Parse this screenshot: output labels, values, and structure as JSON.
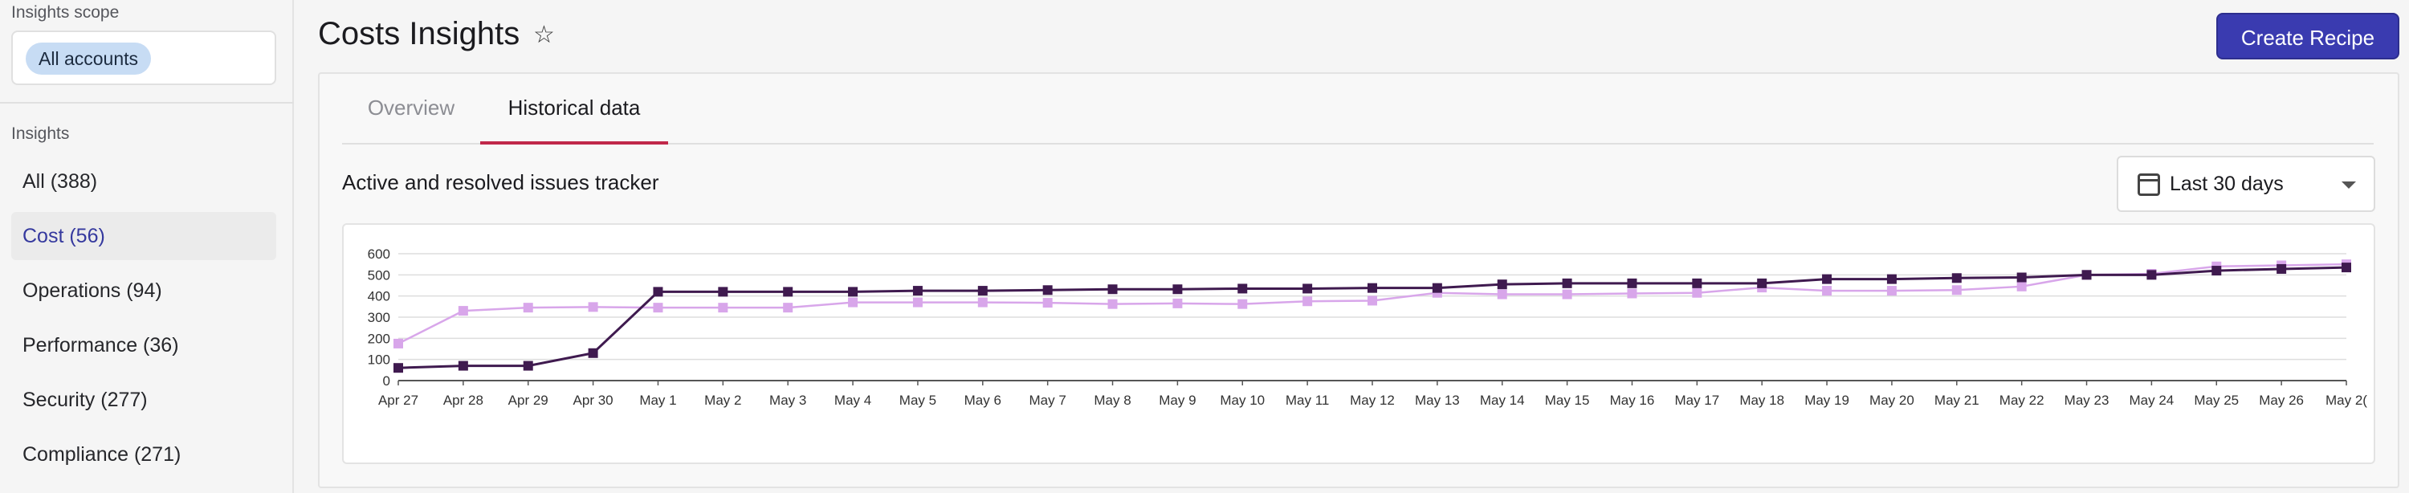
{
  "sidebar": {
    "scope_label": "Insights scope",
    "scope_chip": "All accounts",
    "insights_label": "Insights",
    "items": [
      {
        "label": "All (388)"
      },
      {
        "label": "Cost (56)"
      },
      {
        "label": "Operations (94)"
      },
      {
        "label": "Performance (36)"
      },
      {
        "label": "Security (277)"
      },
      {
        "label": "Compliance (271)"
      }
    ]
  },
  "header": {
    "title": "Costs Insights",
    "star_icon": "star-outline-icon",
    "create_button": "Create Recipe"
  },
  "tabs": [
    {
      "label": "Overview",
      "active": false
    },
    {
      "label": "Historical data",
      "active": true
    }
  ],
  "tracker": {
    "title": "Active and resolved issues tracker",
    "range": "Last 30 days",
    "calendar_icon": "calendar-icon",
    "dropdown_icon": "caret-down-icon"
  },
  "colors": {
    "accent": "#3a3bb0",
    "series_dark": "#3f1a4f",
    "series_light": "#d8a6ea",
    "tab_underline": "#c0284a"
  },
  "chart_data": {
    "type": "line",
    "ylim": [
      0,
      600
    ],
    "yticks": [
      0,
      100,
      200,
      300,
      400,
      500,
      600
    ],
    "grid": true,
    "categories": [
      "Apr 27",
      "Apr 28",
      "Apr 29",
      "Apr 30",
      "May 1",
      "May 2",
      "May 3",
      "May 4",
      "May 5",
      "May 6",
      "May 7",
      "May 8",
      "May 9",
      "May 10",
      "May 11",
      "May 12",
      "May 13",
      "May 14",
      "May 15",
      "May 16",
      "May 17",
      "May 18",
      "May 19",
      "May 20",
      "May 21",
      "May 22",
      "May 23",
      "May 24",
      "May 25",
      "May 26",
      "May 2("
    ],
    "series": [
      {
        "color": "#3f1a4f",
        "values": [
          60,
          70,
          70,
          130,
          420,
          420,
          420,
          420,
          425,
          425,
          428,
          432,
          432,
          435,
          435,
          438,
          438,
          455,
          460,
          460,
          460,
          460,
          480,
          480,
          485,
          488,
          500,
          500,
          520,
          528,
          535
        ]
      },
      {
        "color": "#d8a6ea",
        "values": [
          175,
          330,
          345,
          348,
          345,
          345,
          345,
          370,
          370,
          370,
          368,
          362,
          365,
          362,
          375,
          378,
          415,
          408,
          408,
          412,
          415,
          440,
          425,
          425,
          428,
          445,
          500,
          505,
          540,
          545,
          550
        ]
      }
    ]
  }
}
